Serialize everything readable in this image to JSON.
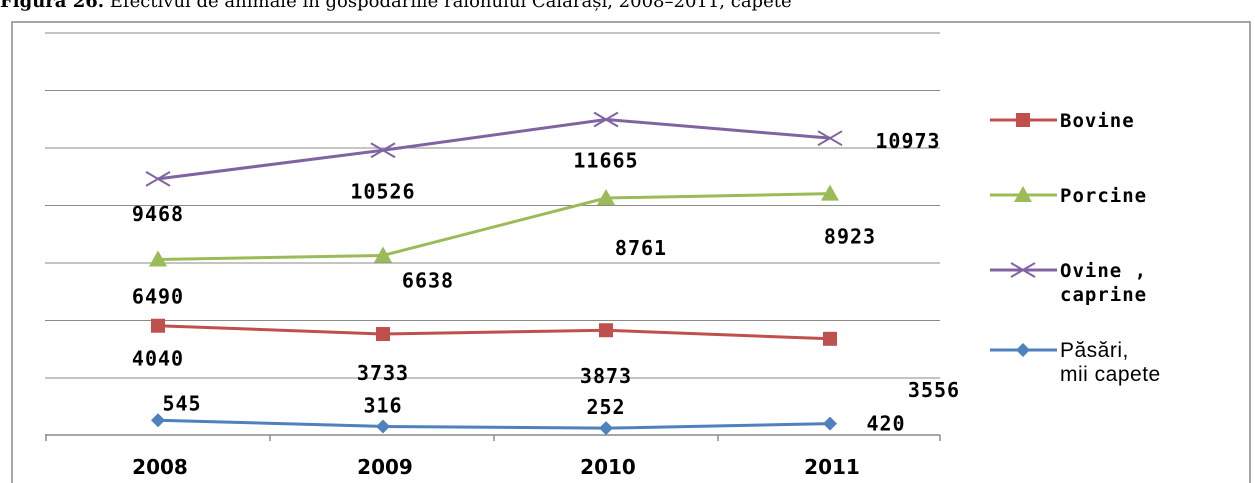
{
  "caption": {
    "figure_number": "Figura 26.",
    "text": "Efectivul de animale în gospodăriile raionului Călărași, 2008–2011, capete"
  },
  "chart_data": {
    "type": "line",
    "categories": [
      "2008",
      "2009",
      "2010",
      "2011"
    ],
    "series": [
      {
        "name": "Bovine",
        "color": "#c0504d",
        "marker": "square",
        "values": [
          4040,
          3733,
          3873,
          3556
        ]
      },
      {
        "name": "Porcine",
        "color": "#9bbb59",
        "marker": "triangle",
        "values": [
          6490,
          6638,
          8761,
          8923
        ]
      },
      {
        "name": "Ovine , caprine",
        "color": "#8064a2",
        "marker": "x",
        "values": [
          9468,
          10526,
          11665,
          10973
        ]
      },
      {
        "name": "Păsări, mii capete",
        "color": "#4f81bd",
        "marker": "diamond",
        "values": [
          545,
          316,
          252,
          420
        ]
      }
    ],
    "gridlines": true,
    "legend_position": "right",
    "data_labels": true
  }
}
